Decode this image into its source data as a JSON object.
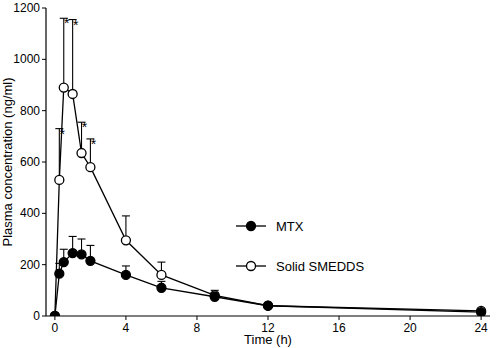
{
  "chart_data": {
    "type": "line",
    "x_label": "Time (h)",
    "y_label": "Plasma concentration (ng/ml)",
    "x": [
      0,
      0.25,
      0.5,
      1,
      1.5,
      2,
      4,
      6,
      9,
      12,
      24
    ],
    "series": [
      {
        "name": "MTX",
        "color": "#000000",
        "marker": "filled-circle",
        "line_style": "solid",
        "values": [
          0,
          165,
          210,
          245,
          240,
          215,
          160,
          110,
          75,
          40,
          15
        ],
        "errors": [
          0,
          40,
          50,
          65,
          60,
          60,
          35,
          25,
          15,
          8,
          5
        ]
      },
      {
        "name": "Solid SMEDDS",
        "color": "#000000",
        "marker": "open-circle",
        "line_style": "solid",
        "values": [
          0,
          530,
          890,
          865,
          635,
          580,
          295,
          160,
          80,
          40,
          20
        ],
        "errors": [
          0,
          200,
          270,
          290,
          120,
          110,
          95,
          50,
          20,
          10,
          5
        ]
      }
    ],
    "annotations": [
      {
        "text": "*",
        "x": 0.25
      },
      {
        "text": "*",
        "x": 0.5
      },
      {
        "text": "*",
        "x": 1
      },
      {
        "text": "*",
        "x": 1.5
      },
      {
        "text": "*",
        "x": 2
      }
    ],
    "xlim": [
      -0.5,
      24.5
    ],
    "xticks": [
      0,
      4,
      8,
      12,
      16,
      20,
      24
    ],
    "ylim": [
      0,
      1200
    ],
    "yticks": [
      0,
      200,
      400,
      600,
      800,
      1000,
      1200
    ],
    "grid": false,
    "legend": "center"
  }
}
